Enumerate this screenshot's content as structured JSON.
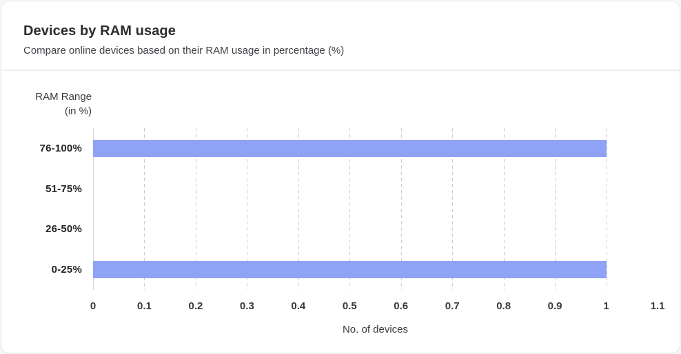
{
  "header": {
    "title": "Devices by RAM usage",
    "subtitle": "Compare online devices based on their RAM usage in percentage (%)"
  },
  "chart_data": {
    "type": "bar",
    "orientation": "horizontal",
    "title": "Devices by RAM usage",
    "categories": [
      "76-100%",
      "51-75%",
      "26-50%",
      "0-25%"
    ],
    "values": [
      1,
      0,
      0,
      1
    ],
    "xlabel": "No. of devices",
    "ylabel": "RAM Range (in %)",
    "ylabel_lines": [
      "RAM Range",
      "(in %)"
    ],
    "xlim": [
      0,
      1.1
    ],
    "xticks": [
      {
        "label": "0",
        "value": 0,
        "grid": true
      },
      {
        "label": "0.1",
        "value": 0.1,
        "grid": true
      },
      {
        "label": "0.2",
        "value": 0.2,
        "grid": true
      },
      {
        "label": "0.3",
        "value": 0.3,
        "grid": true
      },
      {
        "label": "0.4",
        "value": 0.4,
        "grid": true
      },
      {
        "label": "0.5",
        "value": 0.5,
        "grid": true
      },
      {
        "label": "0.6",
        "value": 0.6,
        "grid": true
      },
      {
        "label": "0.7",
        "value": 0.7,
        "grid": true
      },
      {
        "label": "0.8",
        "value": 0.8,
        "grid": true
      },
      {
        "label": "0.9",
        "value": 0.9,
        "grid": true
      },
      {
        "label": "1",
        "value": 1,
        "grid": true
      },
      {
        "label": "1.1",
        "value": 1.1,
        "grid": false
      }
    ],
    "grid": "vertical-dashed",
    "legend": "none",
    "colors": {
      "bar": "#8fa2f6",
      "gridline": "#cdcdd3",
      "zero_line": "#d8d8dc"
    }
  }
}
